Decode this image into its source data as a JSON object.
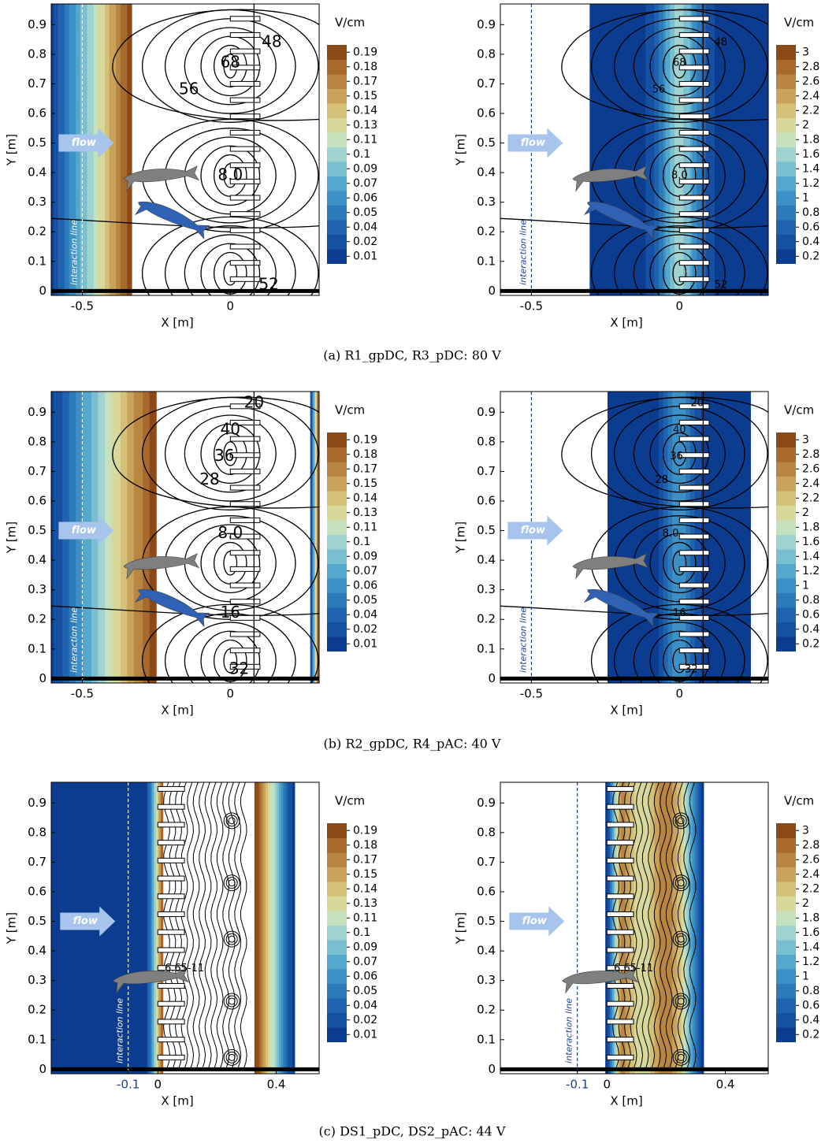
{
  "captions": [
    "(a) R1_gpDC, R3_pDC: 80 V",
    "(b) R2_gpDC, R4_pAC: 40 V",
    "(c) DS1_pDC, DS2_pAC: 44 V"
  ],
  "chart_data": [
    {
      "type": "contour",
      "xlabel": "X [m]",
      "ylabel": "Y [m]",
      "xlim": [
        -0.605,
        0.3
      ],
      "ylim": [
        -0.015,
        0.97
      ],
      "xticks": [
        -0.5,
        0
      ],
      "yticks": [
        0,
        0.1,
        0.2,
        0.3,
        0.4,
        0.5,
        0.6,
        0.7,
        0.8,
        0.9
      ],
      "colorbar": {
        "label": "V/cm",
        "ticks": [
          0.01,
          0.02,
          0.04,
          0.05,
          0.06,
          0.07,
          0.09,
          0.1,
          0.11,
          0.13,
          0.14,
          0.15,
          0.17,
          0.18,
          0.19
        ],
        "colors": [
          "#0b3c8f",
          "#1650a3",
          "#2064b0",
          "#2d7abb",
          "#3c90c5",
          "#55a8cd",
          "#79bfd2",
          "#a0d3cf",
          "#c5e2bd",
          "#d8d89a",
          "#d5c078",
          "#c9a35a",
          "#b98641",
          "#a7692c",
          "#8d4a19"
        ]
      },
      "flow_label": "flow",
      "interaction_line": {
        "label": "interaction line",
        "x": -0.5,
        "color": "#ffffff"
      },
      "contour_labels": [
        "48",
        "68",
        "56",
        "8.0",
        "52"
      ]
    },
    {
      "type": "contour",
      "xlabel": "X [m]",
      "ylabel": "Y [m]",
      "xlim": [
        -0.605,
        0.3
      ],
      "ylim": [
        -0.015,
        0.97
      ],
      "xticks": [
        -0.5,
        0
      ],
      "yticks": [
        0,
        0.1,
        0.2,
        0.3,
        0.4,
        0.5,
        0.6,
        0.7,
        0.8,
        0.9
      ],
      "colorbar": {
        "label": "V/cm",
        "ticks": [
          0.2,
          0.4,
          0.6,
          0.8,
          1,
          1.2,
          1.4,
          1.6,
          1.8,
          2,
          2.2,
          2.4,
          2.6,
          2.8,
          3
        ],
        "colors": [
          "#0b3c8f",
          "#1650a3",
          "#2064b0",
          "#2d7abb",
          "#3c90c5",
          "#55a8cd",
          "#79bfd2",
          "#a0d3cf",
          "#c5e2bd",
          "#d8d89a",
          "#d5c078",
          "#c9a35a",
          "#b98641",
          "#a7692c",
          "#8d4a19"
        ]
      },
      "flow_label": "flow",
      "interaction_line": {
        "label": "interaction line",
        "x": -0.5,
        "color": "#1f3f8f"
      },
      "contour_labels": [
        "48",
        "68",
        "56",
        "8.0",
        "52"
      ]
    },
    {
      "type": "contour",
      "xlabel": "X [m]",
      "ylabel": "Y [m]",
      "xlim": [
        -0.605,
        0.3
      ],
      "ylim": [
        -0.015,
        0.97
      ],
      "xticks": [
        -0.5,
        0
      ],
      "yticks": [
        0,
        0.1,
        0.2,
        0.3,
        0.4,
        0.5,
        0.6,
        0.7,
        0.8,
        0.9
      ],
      "colorbar": {
        "label": "V/cm",
        "ticks": [
          0.01,
          0.02,
          0.04,
          0.05,
          0.06,
          0.07,
          0.09,
          0.1,
          0.11,
          0.13,
          0.14,
          0.15,
          0.17,
          0.18,
          0.19
        ],
        "colors": [
          "#0b3c8f",
          "#1650a3",
          "#2064b0",
          "#2d7abb",
          "#3c90c5",
          "#55a8cd",
          "#79bfd2",
          "#a0d3cf",
          "#c5e2bd",
          "#d8d89a",
          "#d5c078",
          "#c9a35a",
          "#b98641",
          "#a7692c",
          "#8d4a19"
        ]
      },
      "flow_label": "flow",
      "interaction_line": {
        "label": "interaction line",
        "x": -0.5,
        "color": "#ffffff"
      },
      "contour_labels": [
        "20",
        "40",
        "36",
        "28",
        "8.0",
        "16",
        "32"
      ]
    },
    {
      "type": "contour",
      "xlabel": "X [m]",
      "ylabel": "Y [m]",
      "xlim": [
        -0.605,
        0.3
      ],
      "ylim": [
        -0.015,
        0.97
      ],
      "xticks": [
        -0.5,
        0
      ],
      "yticks": [
        0,
        0.1,
        0.2,
        0.3,
        0.4,
        0.5,
        0.6,
        0.7,
        0.8,
        0.9
      ],
      "colorbar": {
        "label": "V/cm",
        "ticks": [
          0.2,
          0.4,
          0.6,
          0.8,
          1,
          1.2,
          1.4,
          1.6,
          1.8,
          2,
          2.2,
          2.4,
          2.6,
          2.8,
          3
        ],
        "colors": [
          "#0b3c8f",
          "#1650a3",
          "#2064b0",
          "#2d7abb",
          "#3c90c5",
          "#55a8cd",
          "#79bfd2",
          "#a0d3cf",
          "#c5e2bd",
          "#d8d89a",
          "#d5c078",
          "#c9a35a",
          "#b98641",
          "#a7692c",
          "#8d4a19"
        ]
      },
      "flow_label": "flow",
      "interaction_line": {
        "label": "interaction line",
        "x": -0.5,
        "color": "#1f3f8f"
      },
      "contour_labels": [
        "20",
        "40",
        "36",
        "28",
        "8.0",
        "16",
        "32"
      ]
    },
    {
      "type": "contour",
      "xlabel": "X [m]",
      "ylabel": "Y [m]",
      "xlim": [
        -0.36,
        0.545
      ],
      "ylim": [
        -0.015,
        0.97
      ],
      "xticks": [
        -0.1,
        0,
        0.4
      ],
      "yticks": [
        0,
        0.1,
        0.2,
        0.3,
        0.4,
        0.5,
        0.6,
        0.7,
        0.8,
        0.9
      ],
      "colorbar": {
        "label": "V/cm",
        "ticks": [
          0.01,
          0.02,
          0.04,
          0.05,
          0.06,
          0.07,
          0.09,
          0.1,
          0.11,
          0.13,
          0.14,
          0.15,
          0.17,
          0.18,
          0.19
        ],
        "colors": [
          "#0b3c8f",
          "#1650a3",
          "#2064b0",
          "#2d7abb",
          "#3c90c5",
          "#55a8cd",
          "#79bfd2",
          "#a0d3cf",
          "#c5e2bd",
          "#d8d89a",
          "#d5c078",
          "#c9a35a",
          "#b98641",
          "#a7692c",
          "#8d4a19"
        ]
      },
      "flow_label": "flow",
      "interaction_line": {
        "label": "interaction line",
        "x": -0.1,
        "color": "#ffffff"
      },
      "tick_highlight": "#1f3f8f",
      "contour_labels": [
        "6.65-11"
      ]
    },
    {
      "type": "contour",
      "xlabel": "X [m]",
      "ylabel": "Y [m]",
      "xlim": [
        -0.36,
        0.545
      ],
      "ylim": [
        -0.015,
        0.97
      ],
      "xticks": [
        -0.1,
        0,
        0.4
      ],
      "yticks": [
        0,
        0.1,
        0.2,
        0.3,
        0.4,
        0.5,
        0.6,
        0.7,
        0.8,
        0.9
      ],
      "colorbar": {
        "label": "V/cm",
        "ticks": [
          0.2,
          0.4,
          0.6,
          0.8,
          1,
          1.2,
          1.4,
          1.6,
          1.8,
          2,
          2.2,
          2.4,
          2.6,
          2.8,
          3
        ],
        "colors": [
          "#0b3c8f",
          "#1650a3",
          "#2064b0",
          "#2d7abb",
          "#3c90c5",
          "#55a8cd",
          "#79bfd2",
          "#a0d3cf",
          "#c5e2bd",
          "#d8d89a",
          "#d5c078",
          "#c9a35a",
          "#b98641",
          "#a7692c",
          "#8d4a19"
        ]
      },
      "flow_label": "flow",
      "interaction_line": {
        "label": "interaction line",
        "x": -0.1,
        "color": "#1f3f8f"
      },
      "tick_highlight": "#1f3f8f",
      "contour_labels": [
        "6.65-11"
      ]
    }
  ]
}
